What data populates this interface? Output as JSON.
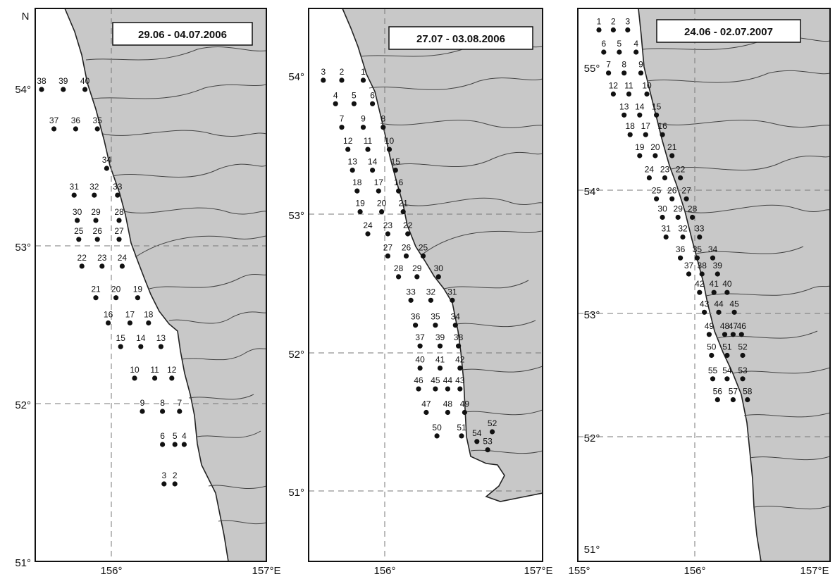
{
  "panels": [
    {
      "title": "29.06 - 04.07.2006",
      "north_label": "N",
      "lat_labels": [
        "54°",
        "53°",
        "52°",
        "51°"
      ],
      "lon_labels": [
        "156°",
        "157°E"
      ],
      "stations": [
        {
          "n": "38",
          "lon": 155.55,
          "lat": 54.0
        },
        {
          "n": "39",
          "lon": 155.69,
          "lat": 54.0
        },
        {
          "n": "40",
          "lon": 155.83,
          "lat": 54.0
        },
        {
          "n": "37",
          "lon": 155.63,
          "lat": 53.75
        },
        {
          "n": "36",
          "lon": 155.77,
          "lat": 53.75
        },
        {
          "n": "35",
          "lon": 155.91,
          "lat": 53.75
        },
        {
          "n": "34",
          "lon": 155.97,
          "lat": 53.5
        },
        {
          "n": "31",
          "lon": 155.76,
          "lat": 53.33
        },
        {
          "n": "32",
          "lon": 155.89,
          "lat": 53.33
        },
        {
          "n": "33",
          "lon": 156.04,
          "lat": 53.33
        },
        {
          "n": "30",
          "lon": 155.78,
          "lat": 53.17
        },
        {
          "n": "29",
          "lon": 155.9,
          "lat": 53.17
        },
        {
          "n": "28",
          "lon": 156.05,
          "lat": 53.17
        },
        {
          "n": "25",
          "lon": 155.79,
          "lat": 53.05
        },
        {
          "n": "26",
          "lon": 155.91,
          "lat": 53.05
        },
        {
          "n": "27",
          "lon": 156.05,
          "lat": 53.05
        },
        {
          "n": "22",
          "lon": 155.81,
          "lat": 52.88
        },
        {
          "n": "23",
          "lon": 155.94,
          "lat": 52.88
        },
        {
          "n": "24",
          "lon": 156.07,
          "lat": 52.88
        },
        {
          "n": "21",
          "lon": 155.9,
          "lat": 52.68
        },
        {
          "n": "20",
          "lon": 156.03,
          "lat": 52.68
        },
        {
          "n": "19",
          "lon": 156.17,
          "lat": 52.68
        },
        {
          "n": "16",
          "lon": 155.98,
          "lat": 52.52
        },
        {
          "n": "17",
          "lon": 156.12,
          "lat": 52.52
        },
        {
          "n": "18",
          "lon": 156.24,
          "lat": 52.52
        },
        {
          "n": "15",
          "lon": 156.06,
          "lat": 52.37
        },
        {
          "n": "14",
          "lon": 156.19,
          "lat": 52.37
        },
        {
          "n": "13",
          "lon": 156.32,
          "lat": 52.37
        },
        {
          "n": "10",
          "lon": 156.15,
          "lat": 52.17
        },
        {
          "n": "11",
          "lon": 156.28,
          "lat": 52.17
        },
        {
          "n": "12",
          "lon": 156.39,
          "lat": 52.17
        },
        {
          "n": "9",
          "lon": 156.2,
          "lat": 51.96
        },
        {
          "n": "8",
          "lon": 156.33,
          "lat": 51.96
        },
        {
          "n": "7",
          "lon": 156.44,
          "lat": 51.96
        },
        {
          "n": "6",
          "lon": 156.33,
          "lat": 51.75
        },
        {
          "n": "5",
          "lon": 156.41,
          "lat": 51.75
        },
        {
          "n": "4",
          "lon": 156.47,
          "lat": 51.75
        },
        {
          "n": "3",
          "lon": 156.34,
          "lat": 51.5
        },
        {
          "n": "2",
          "lon": 156.41,
          "lat": 51.5
        }
      ]
    },
    {
      "title": "27.07 - 03.08.2006",
      "lat_labels": [
        "54°",
        "53°",
        "52°",
        "51°"
      ],
      "lon_labels": [
        "156°",
        "157°E"
      ],
      "stations": [
        {
          "n": "3",
          "lon": 155.6,
          "lat": 53.97
        },
        {
          "n": "2",
          "lon": 155.72,
          "lat": 53.97
        },
        {
          "n": "1",
          "lon": 155.86,
          "lat": 53.97
        },
        {
          "n": "4",
          "lon": 155.68,
          "lat": 53.8
        },
        {
          "n": "5",
          "lon": 155.8,
          "lat": 53.8
        },
        {
          "n": "6",
          "lon": 155.92,
          "lat": 53.8
        },
        {
          "n": "7",
          "lon": 155.72,
          "lat": 53.63
        },
        {
          "n": "9",
          "lon": 155.86,
          "lat": 53.63
        },
        {
          "n": "8",
          "lon": 155.99,
          "lat": 53.63
        },
        {
          "n": "12",
          "lon": 155.76,
          "lat": 53.47
        },
        {
          "n": "11",
          "lon": 155.89,
          "lat": 53.47
        },
        {
          "n": "10",
          "lon": 156.03,
          "lat": 53.47
        },
        {
          "n": "13",
          "lon": 155.79,
          "lat": 53.32
        },
        {
          "n": "14",
          "lon": 155.92,
          "lat": 53.32
        },
        {
          "n": "15",
          "lon": 156.07,
          "lat": 53.32
        },
        {
          "n": "18",
          "lon": 155.82,
          "lat": 53.17
        },
        {
          "n": "17",
          "lon": 155.96,
          "lat": 53.17
        },
        {
          "n": "16",
          "lon": 156.09,
          "lat": 53.17
        },
        {
          "n": "19",
          "lon": 155.84,
          "lat": 53.02
        },
        {
          "n": "20",
          "lon": 155.98,
          "lat": 53.02
        },
        {
          "n": "21",
          "lon": 156.12,
          "lat": 53.02
        },
        {
          "n": "24",
          "lon": 155.89,
          "lat": 52.86
        },
        {
          "n": "23",
          "lon": 156.02,
          "lat": 52.86
        },
        {
          "n": "22",
          "lon": 156.15,
          "lat": 52.86
        },
        {
          "n": "27",
          "lon": 156.02,
          "lat": 52.7
        },
        {
          "n": "26",
          "lon": 156.14,
          "lat": 52.7
        },
        {
          "n": "25",
          "lon": 156.25,
          "lat": 52.7
        },
        {
          "n": "28",
          "lon": 156.09,
          "lat": 52.55
        },
        {
          "n": "29",
          "lon": 156.21,
          "lat": 52.55
        },
        {
          "n": "30",
          "lon": 156.35,
          "lat": 52.55
        },
        {
          "n": "33",
          "lon": 156.17,
          "lat": 52.38
        },
        {
          "n": "32",
          "lon": 156.3,
          "lat": 52.38
        },
        {
          "n": "31",
          "lon": 156.44,
          "lat": 52.38
        },
        {
          "n": "36",
          "lon": 156.2,
          "lat": 52.2
        },
        {
          "n": "35",
          "lon": 156.33,
          "lat": 52.2
        },
        {
          "n": "34",
          "lon": 156.46,
          "lat": 52.2
        },
        {
          "n": "37",
          "lon": 156.23,
          "lat": 52.05
        },
        {
          "n": "39",
          "lon": 156.36,
          "lat": 52.05
        },
        {
          "n": "38",
          "lon": 156.48,
          "lat": 52.05
        },
        {
          "n": "40",
          "lon": 156.23,
          "lat": 51.89
        },
        {
          "n": "41",
          "lon": 156.36,
          "lat": 51.89
        },
        {
          "n": "42",
          "lon": 156.49,
          "lat": 51.89
        },
        {
          "n": "46",
          "lon": 156.22,
          "lat": 51.74
        },
        {
          "n": "45",
          "lon": 156.33,
          "lat": 51.74
        },
        {
          "n": "44",
          "lon": 156.41,
          "lat": 51.74
        },
        {
          "n": "43",
          "lon": 156.49,
          "lat": 51.74
        },
        {
          "n": "47",
          "lon": 156.27,
          "lat": 51.57
        },
        {
          "n": "48",
          "lon": 156.41,
          "lat": 51.57
        },
        {
          "n": "49",
          "lon": 156.52,
          "lat": 51.57
        },
        {
          "n": "50",
          "lon": 156.34,
          "lat": 51.4
        },
        {
          "n": "51",
          "lon": 156.5,
          "lat": 51.4
        },
        {
          "n": "54",
          "lon": 156.6,
          "lat": 51.36
        },
        {
          "n": "53",
          "lon": 156.67,
          "lat": 51.3
        },
        {
          "n": "52",
          "lon": 156.7,
          "lat": 51.43
        }
      ]
    },
    {
      "title": "24.06 - 02.07.2007",
      "lat_labels": [
        "55°",
        "54°",
        "53°",
        "52°",
        "51°"
      ],
      "lon_labels": [
        "155°",
        "156°",
        "157°E"
      ],
      "stations": [
        {
          "n": "1",
          "lon": 155.2,
          "lat": 55.3
        },
        {
          "n": "2",
          "lon": 155.32,
          "lat": 55.3
        },
        {
          "n": "3",
          "lon": 155.44,
          "lat": 55.3
        },
        {
          "n": "6",
          "lon": 155.24,
          "lat": 55.12
        },
        {
          "n": "5",
          "lon": 155.37,
          "lat": 55.12
        },
        {
          "n": "4",
          "lon": 155.51,
          "lat": 55.12
        },
        {
          "n": "7",
          "lon": 155.28,
          "lat": 54.95
        },
        {
          "n": "8",
          "lon": 155.41,
          "lat": 54.95
        },
        {
          "n": "9",
          "lon": 155.55,
          "lat": 54.95
        },
        {
          "n": "12",
          "lon": 155.32,
          "lat": 54.78
        },
        {
          "n": "11",
          "lon": 155.45,
          "lat": 54.78
        },
        {
          "n": "10",
          "lon": 155.6,
          "lat": 54.78
        },
        {
          "n": "13",
          "lon": 155.41,
          "lat": 54.61
        },
        {
          "n": "14",
          "lon": 155.54,
          "lat": 54.61
        },
        {
          "n": "15",
          "lon": 155.68,
          "lat": 54.61
        },
        {
          "n": "18",
          "lon": 155.46,
          "lat": 54.45
        },
        {
          "n": "17",
          "lon": 155.59,
          "lat": 54.45
        },
        {
          "n": "16",
          "lon": 155.73,
          "lat": 54.45
        },
        {
          "n": "19",
          "lon": 155.54,
          "lat": 54.28
        },
        {
          "n": "20",
          "lon": 155.67,
          "lat": 54.28
        },
        {
          "n": "21",
          "lon": 155.81,
          "lat": 54.28
        },
        {
          "n": "24",
          "lon": 155.62,
          "lat": 54.1
        },
        {
          "n": "23",
          "lon": 155.75,
          "lat": 54.1
        },
        {
          "n": "22",
          "lon": 155.88,
          "lat": 54.1
        },
        {
          "n": "25",
          "lon": 155.68,
          "lat": 53.93
        },
        {
          "n": "26",
          "lon": 155.81,
          "lat": 53.93
        },
        {
          "n": "27",
          "lon": 155.93,
          "lat": 53.93
        },
        {
          "n": "30",
          "lon": 155.73,
          "lat": 53.78
        },
        {
          "n": "29",
          "lon": 155.86,
          "lat": 53.78
        },
        {
          "n": "28",
          "lon": 155.98,
          "lat": 53.78
        },
        {
          "n": "31",
          "lon": 155.76,
          "lat": 53.62
        },
        {
          "n": "32",
          "lon": 155.9,
          "lat": 53.62
        },
        {
          "n": "33",
          "lon": 156.04,
          "lat": 53.62
        },
        {
          "n": "36",
          "lon": 155.88,
          "lat": 53.45
        },
        {
          "n": "35",
          "lon": 156.02,
          "lat": 53.45
        },
        {
          "n": "34",
          "lon": 156.15,
          "lat": 53.45
        },
        {
          "n": "37",
          "lon": 155.95,
          "lat": 53.32
        },
        {
          "n": "38",
          "lon": 156.06,
          "lat": 53.32
        },
        {
          "n": "39",
          "lon": 156.19,
          "lat": 53.32
        },
        {
          "n": "42",
          "lon": 156.04,
          "lat": 53.17
        },
        {
          "n": "41",
          "lon": 156.16,
          "lat": 53.17
        },
        {
          "n": "40",
          "lon": 156.27,
          "lat": 53.17
        },
        {
          "n": "43",
          "lon": 156.08,
          "lat": 53.01
        },
        {
          "n": "44",
          "lon": 156.2,
          "lat": 53.01
        },
        {
          "n": "45",
          "lon": 156.33,
          "lat": 53.01
        },
        {
          "n": "49",
          "lon": 156.12,
          "lat": 52.83
        },
        {
          "n": "48",
          "lon": 156.25,
          "lat": 52.83
        },
        {
          "n": "47",
          "lon": 156.32,
          "lat": 52.83
        },
        {
          "n": "46",
          "lon": 156.39,
          "lat": 52.83
        },
        {
          "n": "50",
          "lon": 156.14,
          "lat": 52.66
        },
        {
          "n": "51",
          "lon": 156.27,
          "lat": 52.66
        },
        {
          "n": "52",
          "lon": 156.4,
          "lat": 52.66
        },
        {
          "n": "55",
          "lon": 156.15,
          "lat": 52.47
        },
        {
          "n": "54",
          "lon": 156.27,
          "lat": 52.47
        },
        {
          "n": "53",
          "lon": 156.4,
          "lat": 52.47
        },
        {
          "n": "56",
          "lon": 156.19,
          "lat": 52.3
        },
        {
          "n": "57",
          "lon": 156.32,
          "lat": 52.3
        },
        {
          "n": "58",
          "lon": 156.44,
          "lat": 52.3
        }
      ]
    }
  ]
}
